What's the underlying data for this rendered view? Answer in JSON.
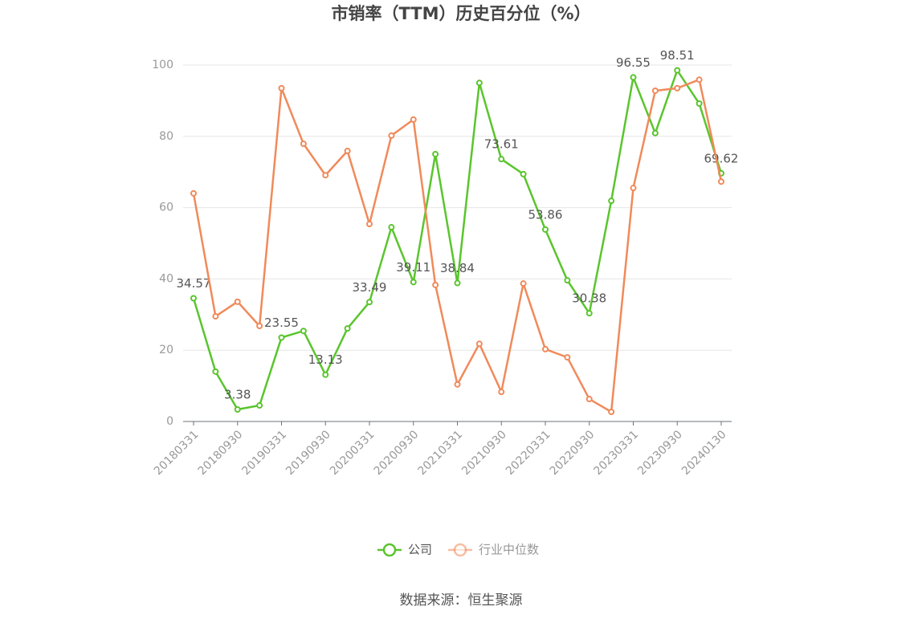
{
  "chart_data": {
    "type": "line",
    "title": "市销率（TTM）历史百分位（%）",
    "source": "数据来源：恒生聚源",
    "categories": [
      "20180331",
      null,
      "20180930",
      null,
      "20190331",
      null,
      "20190930",
      null,
      "20200331",
      null,
      "20200930",
      null,
      "20210331",
      null,
      "20210930",
      null,
      "20220331",
      null,
      "20220930",
      null,
      "20230331",
      null,
      "20230930",
      null,
      "20240130"
    ],
    "ylim": [
      0,
      100
    ],
    "yticks": [
      0,
      20,
      40,
      60,
      80,
      100
    ],
    "grid": true,
    "legend": "bottom",
    "series": [
      {
        "name": "公司",
        "color": "#5ac52d",
        "values": [
          34.57,
          14.0,
          3.38,
          4.5,
          23.55,
          25.4,
          13.13,
          26.1,
          33.49,
          54.5,
          39.11,
          75.0,
          38.84,
          95.0,
          73.61,
          69.4,
          53.86,
          39.6,
          30.38,
          61.9,
          96.55,
          80.9,
          98.51,
          89.2,
          69.62
        ],
        "value_labels": [
          "34.57",
          null,
          "3.38",
          null,
          "23.55",
          null,
          "13.13",
          null,
          "33.49",
          null,
          "39.11",
          null,
          "38.84",
          null,
          "73.61",
          null,
          "53.86",
          null,
          "30.38",
          null,
          "96.55",
          null,
          "98.51",
          null,
          "69.62"
        ]
      },
      {
        "name": "行业中位数",
        "color": "#f08a5a",
        "values": [
          64.0,
          29.5,
          33.6,
          26.8,
          93.5,
          77.9,
          69.1,
          75.9,
          55.4,
          80.2,
          84.7,
          38.3,
          10.4,
          21.8,
          8.3,
          38.7,
          20.3,
          18.0,
          6.3,
          2.7,
          65.5,
          92.8,
          93.5,
          95.9,
          67.3
        ]
      }
    ]
  }
}
